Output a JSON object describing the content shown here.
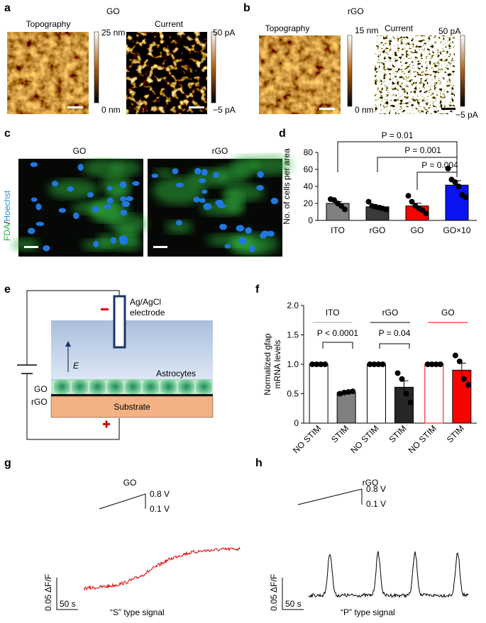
{
  "panels": {
    "a": {
      "letter": "a",
      "title": "GO",
      "topo": "Topography",
      "current": "Current",
      "topo_max": "25 nm",
      "topo_min": "0 nm",
      "cur_max": "50 pA",
      "cur_min": "−5 pA"
    },
    "b": {
      "letter": "b",
      "title": "rGO",
      "topo": "Topography",
      "current": "Current",
      "topo_max": "15 nm",
      "topo_min": "0 nm",
      "cur_max": "50 pA",
      "cur_min": "−5 pA"
    },
    "c": {
      "letter": "c",
      "left": "GO",
      "right": "rGO",
      "stain1": "FDA",
      "sep": "/",
      "stain2": "Hoechst"
    },
    "d": {
      "letter": "d",
      "p1": "P = 0.01",
      "p2": "P = 0.001",
      "p3": "P = 0.004"
    },
    "e": {
      "letter": "e",
      "electrode1": "Ag/AgCl",
      "electrode2": "electrode",
      "field": "E",
      "cells": "Astrocytes",
      "go": "GO",
      "rgo": "rGO",
      "substrate": "Substrate",
      "minus": "−",
      "plus": "+"
    },
    "f": {
      "letter": "f",
      "p1": "P < 0.0001",
      "p2": "P = 0.04"
    },
    "g": {
      "letter": "g",
      "title": "GO",
      "v_high": "0.8 V",
      "v_low": "0.1 V",
      "scale_y": "0.05 ΔF/F",
      "scale_x": "50 s",
      "caption": "“S” type signal"
    },
    "h": {
      "letter": "h",
      "title": "rGO",
      "v_high": "0.8 V",
      "v_low": "0.1 V",
      "scale_y": "0.05 ΔF/F",
      "scale_x": "50 s",
      "caption": "“P” type signal"
    }
  },
  "chart_data": [
    {
      "type": "bar",
      "ylabel": "No. of cells per area",
      "categories": [
        "ITO",
        "rGO",
        "GO",
        "GO×10"
      ],
      "values": [
        20,
        16,
        17,
        41.5
      ],
      "errors": [
        2.2,
        1.4,
        3.2,
        5.2
      ],
      "colors": [
        "#808080",
        "#3a3a3a",
        "#ff0000",
        "#0a14f0"
      ],
      "points": [
        [
          25,
          24,
          20,
          17,
          13
        ],
        [
          22,
          17,
          16,
          15,
          14,
          13
        ],
        [
          29,
          22,
          17,
          14,
          12,
          8
        ],
        [
          61,
          48,
          45,
          40,
          30,
          27
        ]
      ],
      "ylim": [
        0,
        80
      ],
      "yticks": [
        0,
        20,
        40,
        60,
        80
      ]
    },
    {
      "type": "bar",
      "ylabel": [
        "Normalized gfap",
        "mRNA levels"
      ],
      "groups": [
        "ITO",
        "rGO",
        "GO"
      ],
      "group_colors": [
        "#a0a0a0",
        "#000000",
        "#ff0000"
      ],
      "categories": [
        "NO STIM",
        "STIM",
        "NO STIM",
        "STIM",
        "NO STIM",
        "STIM"
      ],
      "values": [
        1,
        0.52,
        1,
        0.61,
        1,
        0.9
      ],
      "errors": [
        null,
        0.02,
        null,
        0.11,
        null,
        0.12
      ],
      "colors": [
        "#ffffff",
        "#808080",
        "#ffffff",
        "#262626",
        "#ffffff",
        "#ff0000"
      ],
      "edge_colors": [
        "#000000",
        "#000000",
        "#000000",
        "#000000",
        "#ff0000",
        "#000000"
      ],
      "points": [
        [
          1,
          1,
          1,
          1
        ],
        [
          0.5,
          0.52,
          0.53,
          0.54
        ],
        [
          1,
          1,
          1,
          1
        ],
        [
          0.85,
          0.75,
          0.5,
          0.35
        ],
        [
          1,
          1,
          1,
          1
        ],
        [
          1.15,
          1.05,
          0.75,
          0.65
        ]
      ],
      "ylim": [
        0,
        2
      ],
      "yticks": [
        0,
        0.5,
        {
          "value": 1,
          "label": "1.0"
        },
        1.5,
        {
          "value": 2,
          "label": "2.0"
        }
      ]
    }
  ]
}
